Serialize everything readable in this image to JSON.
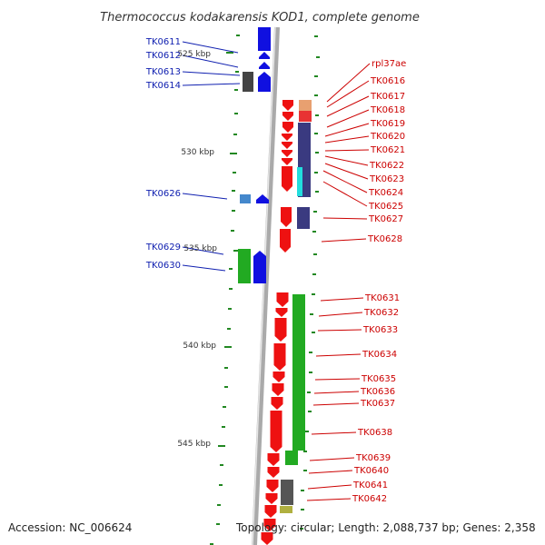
{
  "title": "Thermococcus kodakarensis KOD1, complete genome",
  "footer": {
    "accession": "Accession: NC_006624",
    "topology": "Topology: circular; Length: 2,088,737 bp; Genes: 2,358"
  },
  "colors": {
    "backbone": "#8c8c8c",
    "forward_gene": "#1010e0",
    "forward_label": "#1020b0",
    "reverse_gene": "#ee1111",
    "reverse_label": "#cc0000",
    "green_feature": "#22aa22",
    "tick": "#228822",
    "dark_feature": "#444444",
    "navy_feature": "#3a3a80",
    "cyan_feature": "#22dddd",
    "light_blue_feature": "#4488cc"
  },
  "kbp_ticks": [
    "525 kbp",
    "530 kbp",
    "535 kbp",
    "540 kbp",
    "545 kbp"
  ],
  "forward_labels": [
    "TK0611",
    "TK0612",
    "TK0613",
    "TK0614",
    "TK0626",
    "TK0629",
    "TK0630"
  ],
  "reverse_labels": [
    "rpl37ae",
    "TK0616",
    "TK0617",
    "TK0618",
    "TK0619",
    "TK0620",
    "TK0621",
    "TK0622",
    "TK0623",
    "TK0624",
    "TK0625",
    "TK0627",
    "TK0628",
    "TK0631",
    "TK0632",
    "TK0633",
    "TK0634",
    "TK0635",
    "TK0636",
    "TK0637",
    "TK0638",
    "TK0639",
    "TK0640",
    "TK0641",
    "TK0642"
  ]
}
